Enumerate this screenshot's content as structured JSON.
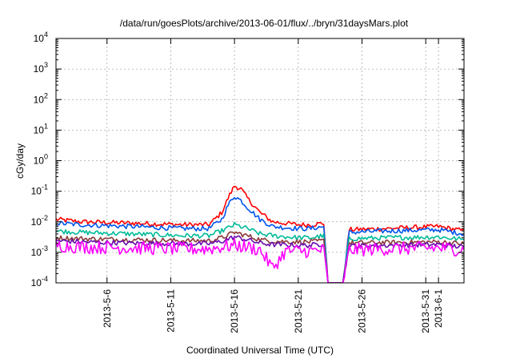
{
  "chart_data": {
    "type": "line",
    "title": "/data/run/goesPlots/archive/2013-06-01/flux/../bryn/31daysMars.plot",
    "xlabel": "Coordinated Universal Time (UTC)",
    "ylabel": "cGy/day",
    "yscale": "log",
    "ylim": [
      0.0001,
      10000
    ],
    "xlim": [
      "2013-05-02",
      "2013-06-03"
    ],
    "grid": true,
    "x_ticks": [
      "2013-5-6",
      "2013-5-11",
      "2013-5-16",
      "2013-5-21",
      "2013-5-26",
      "2013-5-31",
      "2013-6-1"
    ],
    "y_ticks": [
      {
        "base": "10",
        "exp": "-4"
      },
      {
        "base": "10",
        "exp": "-3"
      },
      {
        "base": "10",
        "exp": "-2"
      },
      {
        "base": "10",
        "exp": "-1"
      },
      {
        "base": "10",
        "exp": "0"
      },
      {
        "base": "10",
        "exp": "1"
      },
      {
        "base": "10",
        "exp": "2"
      },
      {
        "base": "10",
        "exp": "3"
      },
      {
        "base": "10",
        "exp": "4"
      }
    ],
    "series": [
      {
        "color": "#ff0000",
        "x": [
          "2013-05-02",
          "2013-05-04",
          "2013-05-08",
          "2013-05-12",
          "2013-05-14",
          "2013-05-15",
          "2013-05-15T12:00",
          "2013-05-16",
          "2013-05-16T12:00",
          "2013-05-17",
          "2013-05-18",
          "2013-05-19",
          "2013-05-21",
          "2013-05-22",
          "2013-05-23",
          "2013-05-23T08:00",
          "2013-05-24T12:00",
          "2013-05-25",
          "2013-05-28",
          "2013-06-01",
          "2013-06-03"
        ],
        "y": [
          0.012,
          0.01,
          0.009,
          0.008,
          0.008,
          0.02,
          0.06,
          0.15,
          0.12,
          0.06,
          0.02,
          0.01,
          0.008,
          0.008,
          0.009,
          0.0001,
          0.0001,
          0.0055,
          0.006,
          0.007,
          0.005
        ]
      },
      {
        "color": "#0055ee",
        "x": [
          "2013-05-02",
          "2013-05-04",
          "2013-05-08",
          "2013-05-12",
          "2013-05-14",
          "2013-05-15",
          "2013-05-15T12:00",
          "2013-05-16",
          "2013-05-16T12:00",
          "2013-05-17",
          "2013-05-18",
          "2013-05-19",
          "2013-05-21",
          "2013-05-22",
          "2013-05-23",
          "2013-05-23T08:00",
          "2013-05-24T12:00",
          "2013-05-25",
          "2013-05-28",
          "2013-06-01",
          "2013-06-03"
        ],
        "y": [
          0.009,
          0.008,
          0.007,
          0.006,
          0.006,
          0.012,
          0.035,
          0.07,
          0.05,
          0.03,
          0.012,
          0.007,
          0.006,
          0.006,
          0.007,
          0.0001,
          0.0001,
          0.0045,
          0.005,
          0.0055,
          0.004
        ]
      },
      {
        "color": "#00bb99",
        "x": [
          "2013-05-02",
          "2013-05-04",
          "2013-05-08",
          "2013-05-12",
          "2013-05-14",
          "2013-05-15",
          "2013-05-16",
          "2013-05-17",
          "2013-05-18",
          "2013-05-19",
          "2013-05-21",
          "2013-05-22",
          "2013-05-23",
          "2013-05-23T08:00",
          "2013-05-24T12:00",
          "2013-05-25",
          "2013-05-28",
          "2013-06-01",
          "2013-06-03"
        ],
        "y": [
          0.005,
          0.0045,
          0.004,
          0.0035,
          0.0035,
          0.005,
          0.008,
          0.006,
          0.004,
          0.0035,
          0.003,
          0.003,
          0.0035,
          0.0001,
          0.0001,
          0.0028,
          0.003,
          0.0032,
          0.0026
        ]
      },
      {
        "color": "#8b3a3a",
        "x": [
          "2013-05-02",
          "2013-05-04",
          "2013-05-08",
          "2013-05-12",
          "2013-05-14",
          "2013-05-15",
          "2013-05-16",
          "2013-05-17",
          "2013-05-18",
          "2013-05-19",
          "2013-05-21",
          "2013-05-22",
          "2013-05-23",
          "2013-05-23T08:00",
          "2013-05-24T12:00",
          "2013-05-25",
          "2013-05-28",
          "2013-06-01",
          "2013-06-03"
        ],
        "y": [
          0.003,
          0.0028,
          0.0026,
          0.0024,
          0.0024,
          0.003,
          0.0045,
          0.0035,
          0.0026,
          0.0023,
          0.0022,
          0.0022,
          0.0024,
          0.0001,
          0.0001,
          0.002,
          0.0021,
          0.0022,
          0.0019
        ]
      },
      {
        "color": "#6a0dad",
        "x": [
          "2013-05-02",
          "2013-05-04",
          "2013-05-08",
          "2013-05-12",
          "2013-05-14",
          "2013-05-15",
          "2013-05-16",
          "2013-05-17",
          "2013-05-18",
          "2013-05-19",
          "2013-05-21",
          "2013-05-22",
          "2013-05-23",
          "2013-05-23T08:00",
          "2013-05-24T12:00",
          "2013-05-25",
          "2013-05-28",
          "2013-06-01",
          "2013-06-03"
        ],
        "y": [
          0.0024,
          0.0022,
          0.002,
          0.0019,
          0.0019,
          0.0023,
          0.0032,
          0.0026,
          0.002,
          0.0018,
          0.0017,
          0.0017,
          0.0019,
          0.0001,
          0.0001,
          0.0016,
          0.0017,
          0.0018,
          0.0015
        ]
      },
      {
        "color": "#ff00ff",
        "x": [
          "2013-05-02",
          "2013-05-04",
          "2013-05-08",
          "2013-05-12",
          "2013-05-14",
          "2013-05-15",
          "2013-05-16",
          "2013-05-17",
          "2013-05-18",
          "2013-05-19",
          "2013-05-20",
          "2013-05-21",
          "2013-05-22",
          "2013-05-23",
          "2013-05-23T08:00",
          "2013-05-24T12:00",
          "2013-05-25",
          "2013-05-28",
          "2013-06-01",
          "2013-06-03"
        ],
        "y": [
          0.0017,
          0.0015,
          0.0014,
          0.0013,
          0.0013,
          0.0015,
          0.0017,
          0.0015,
          0.0012,
          0.0003,
          0.0011,
          0.0011,
          0.0011,
          0.0012,
          0.0001,
          0.0001,
          0.0012,
          0.0013,
          0.0014,
          0.0012
        ]
      }
    ]
  }
}
